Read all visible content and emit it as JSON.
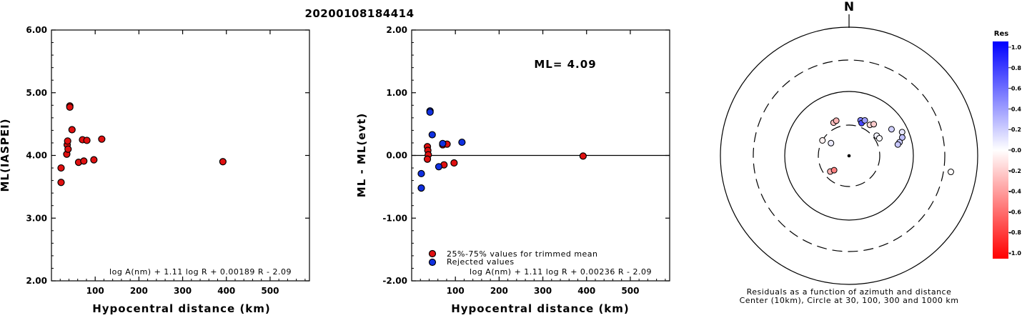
{
  "title": "20200108184414",
  "chart_data": [
    {
      "type": "scatter",
      "ylabel": "ML(IASPEI)",
      "xlabel": "Hypocentral distance (km)",
      "xlim": [
        0,
        590
      ],
      "ylim": [
        2.0,
        6.0
      ],
      "xticks": [
        "100",
        "200",
        "300",
        "400",
        "500"
      ],
      "yticks": [
        "2.00",
        "3.00",
        "4.00",
        "5.00",
        "6.00"
      ],
      "formula": "log A(nm) + 1.11 log R + 0.00189 R - 2.09",
      "points": [
        {
          "x": 22,
          "y": 3.8
        },
        {
          "x": 22,
          "y": 3.57
        },
        {
          "x": 35,
          "y": 4.02
        },
        {
          "x": 36,
          "y": 4.17
        },
        {
          "x": 37,
          "y": 4.23
        },
        {
          "x": 38,
          "y": 4.1
        },
        {
          "x": 42,
          "y": 4.79
        },
        {
          "x": 42,
          "y": 4.77
        },
        {
          "x": 47,
          "y": 4.41
        },
        {
          "x": 62,
          "y": 3.89
        },
        {
          "x": 71,
          "y": 4.25
        },
        {
          "x": 74,
          "y": 3.91
        },
        {
          "x": 81,
          "y": 4.24
        },
        {
          "x": 97,
          "y": 3.93
        },
        {
          "x": 115,
          "y": 4.26
        },
        {
          "x": 392,
          "y": 3.9
        }
      ],
      "point_color": "#e01010"
    },
    {
      "type": "scatter",
      "ylabel": "ML - ML(evt)",
      "xlabel": "Hypocentral distance (km)",
      "xlim": [
        0,
        590
      ],
      "ylim": [
        -2.0,
        2.0
      ],
      "xticks": [
        "100",
        "200",
        "300",
        "400",
        "500"
      ],
      "yticks": [
        "-2.00",
        "-1.00",
        "0.00",
        "1.00",
        "2.00"
      ],
      "annotation": "ML= 4.09",
      "reference_line": 0,
      "formula": "log A(nm) + 1.11 log R + 0.00236 R - 2.09",
      "legend": [
        {
          "label": "25%-75% values for trimmed mean",
          "color": "#e01010"
        },
        {
          "label": "Rejected values",
          "color": "#1030e0"
        }
      ],
      "series": [
        {
          "name": "25%-75% values for trimmed mean",
          "color": "#e01010",
          "points": [
            {
              "x": 36,
              "y": 0.14
            },
            {
              "x": 37,
              "y": 0.08
            },
            {
              "x": 38,
              "y": 0.01
            },
            {
              "x": 36,
              "y": -0.06
            },
            {
              "x": 71,
              "y": 0.17
            },
            {
              "x": 74,
              "y": -0.15
            },
            {
              "x": 81,
              "y": 0.18
            },
            {
              "x": 97,
              "y": -0.12
            },
            {
              "x": 392,
              "y": -0.01
            }
          ]
        },
        {
          "name": "Rejected values",
          "color": "#1030e0",
          "points": [
            {
              "x": 22,
              "y": -0.29
            },
            {
              "x": 22,
              "y": -0.52
            },
            {
              "x": 42,
              "y": 0.71
            },
            {
              "x": 42,
              "y": 0.69
            },
            {
              "x": 47,
              "y": 0.33
            },
            {
              "x": 62,
              "y": -0.18
            },
            {
              "x": 71,
              "y": 0.19
            },
            {
              "x": 115,
              "y": 0.21
            }
          ]
        }
      ]
    },
    {
      "type": "polar-scatter",
      "north_label": "N",
      "caption_line1": "Residuals as a function of azimuth and distance",
      "caption_line2": "Center (10km), Circle at 30, 100, 300 and 1000 km",
      "rings_km": [
        30,
        100,
        300,
        1000
      ],
      "points": [
        {
          "azimuth": 305,
          "distance_km": 22,
          "res": 0.08
        },
        {
          "azimuth": 300,
          "distance_km": 30,
          "res": -0.05
        },
        {
          "azimuth": 230,
          "distance_km": 24,
          "res": -0.3
        },
        {
          "azimuth": 226,
          "distance_km": 21,
          "res": -0.5
        },
        {
          "azimuth": 335,
          "distance_km": 37,
          "res": -0.25
        },
        {
          "azimuth": 340,
          "distance_km": 38,
          "res": -0.3
        },
        {
          "azimuth": 18,
          "distance_km": 38,
          "res": 0.5
        },
        {
          "azimuth": 21,
          "distance_km": 35,
          "res": 0.72
        },
        {
          "azimuth": 24,
          "distance_km": 40,
          "res": 0.38
        },
        {
          "azimuth": 34,
          "distance_km": 38,
          "res": -0.15
        },
        {
          "azimuth": 38,
          "distance_km": 42,
          "res": -0.2
        },
        {
          "azimuth": 54,
          "distance_km": 34,
          "res": 0.05
        },
        {
          "azimuth": 60,
          "distance_km": 35,
          "res": 0.02
        },
        {
          "azimuth": 58,
          "distance_km": 60,
          "res": 0.18
        },
        {
          "azimuth": 66,
          "distance_km": 80,
          "res": 0.1
        },
        {
          "azimuth": 71,
          "distance_km": 75,
          "res": 0.25
        },
        {
          "azimuth": 75,
          "distance_km": 65,
          "res": 0.2
        },
        {
          "azimuth": 77,
          "distance_km": 60,
          "res": 0.22
        },
        {
          "azimuth": 99,
          "distance_km": 392,
          "res": -0.01
        }
      ],
      "colorbar": {
        "title": "Res",
        "ticks": [
          "1.0",
          "0.8",
          "0.6",
          "0.4",
          "0.2",
          "0.0",
          "-0.2",
          "-0.4",
          "-0.6",
          "-0.8",
          "-1.0"
        ],
        "max_color": "#0000ff",
        "zero_color": "#ffffff",
        "min_color": "#ff0000"
      }
    }
  ]
}
